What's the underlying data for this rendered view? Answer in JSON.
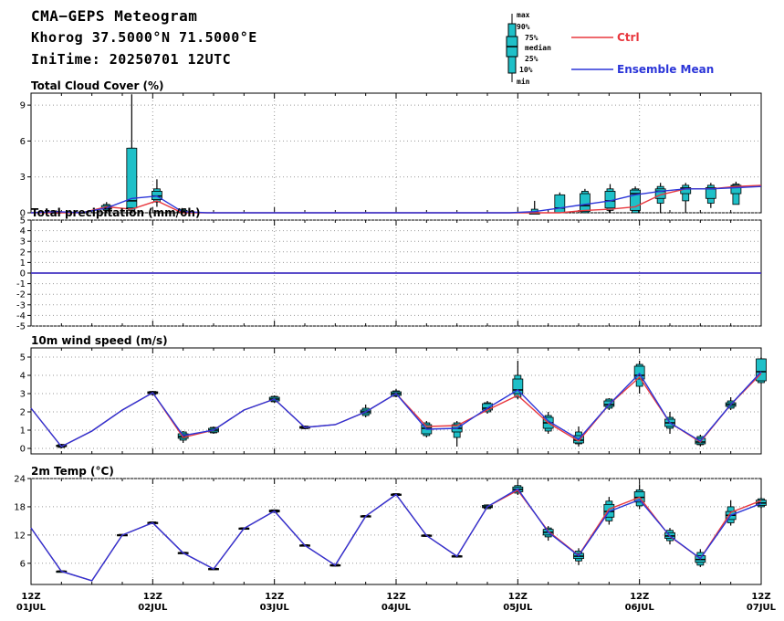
{
  "header": {
    "title": "CMA−GEPS Meteogram",
    "location": "Khorog 37.5000°N 71.5000°E",
    "init_time": "IniTime: 20250701 12UTC"
  },
  "legend": {
    "box_labels": [
      "max",
      "90%",
      "75%",
      "median",
      "25%",
      "10%",
      "min"
    ],
    "ctrl_label": "Ctrl",
    "mean_label": "Ensemble Mean",
    "ctrl_color": "#e8383f",
    "mean_color": "#2b35d8",
    "box_color": "#1fc0c8"
  },
  "x_axis": {
    "tick_hours": [
      "12Z",
      "12Z",
      "12Z",
      "12Z",
      "12Z",
      "12Z",
      "12Z"
    ],
    "tick_dates": [
      "01JUL",
      "02JUL",
      "03JUL",
      "04JUL",
      "05JUL",
      "06JUL",
      "07JUL"
    ]
  },
  "chart_data": [
    {
      "type": "line",
      "title": "Total Cloud Cover (%)",
      "ylim": [
        0,
        10
      ],
      "yticks": [
        0,
        3,
        6,
        9
      ],
      "x_step_hours": 6,
      "series": [
        {
          "name": "Ctrl",
          "values": [
            0,
            0,
            0,
            0.5,
            0.3,
            1,
            0,
            0,
            0,
            0,
            0,
            0,
            0,
            0,
            0,
            0,
            0,
            0,
            0,
            0,
            0,
            0,
            0.2,
            0.3,
            0.5,
            1.5,
            2,
            2,
            2.2,
            2.3
          ]
        },
        {
          "name": "Ensemble Mean",
          "values": [
            0,
            0.1,
            0,
            0.4,
            1.2,
            1.4,
            0.1,
            0,
            0,
            0,
            0,
            0,
            0,
            0,
            0,
            0,
            0,
            0,
            0,
            0,
            0.1,
            0.4,
            0.7,
            1,
            1.5,
            1.8,
            2,
            2,
            2.1,
            2.2
          ]
        }
      ],
      "boxes": [
        {
          "i": 1,
          "min": 0,
          "p10": 0,
          "p25": 0,
          "median": 0,
          "p75": 0.1,
          "p90": 0.1,
          "max": 0.2
        },
        {
          "i": 3,
          "min": 0,
          "p10": 0.2,
          "p25": 0.3,
          "median": 0.4,
          "p75": 0.6,
          "p90": 0.7,
          "max": 0.9
        },
        {
          "i": 4,
          "min": 0,
          "p10": 0.2,
          "p25": 0.4,
          "median": 1,
          "p75": 5.4,
          "p90": 5.4,
          "max": 9.9
        },
        {
          "i": 5,
          "min": 0.5,
          "p10": 0.9,
          "p25": 1.1,
          "median": 1.4,
          "p75": 1.8,
          "p90": 2,
          "max": 2.8
        },
        {
          "i": 6,
          "min": 0,
          "p10": 0,
          "p25": 0,
          "median": 0.1,
          "p75": 0.2,
          "p90": 0.3,
          "max": 0.4
        },
        {
          "i": 20,
          "min": 0,
          "p10": 0,
          "p25": 0,
          "median": 0,
          "p75": 0,
          "p90": 0.3,
          "max": 1
        },
        {
          "i": 21,
          "min": 0,
          "p10": 0,
          "p25": 0,
          "median": 0.4,
          "p75": 1.5,
          "p90": 1.5,
          "max": 1.7
        },
        {
          "i": 22,
          "min": 0,
          "p10": 0,
          "p25": 0.1,
          "median": 0.6,
          "p75": 1.6,
          "p90": 1.8,
          "max": 2
        },
        {
          "i": 23,
          "min": 0,
          "p10": 0.2,
          "p25": 0.4,
          "median": 1,
          "p75": 1.8,
          "p90": 2,
          "max": 2.4
        },
        {
          "i": 24,
          "min": 0,
          "p10": 0,
          "p25": 0.2,
          "median": 1.6,
          "p75": 1.9,
          "p90": 2,
          "max": 2.2
        },
        {
          "i": 25,
          "min": 0,
          "p10": 0.8,
          "p25": 1.2,
          "median": 1.8,
          "p75": 2,
          "p90": 2.2,
          "max": 2.5
        },
        {
          "i": 26,
          "min": 0,
          "p10": 1,
          "p25": 1.6,
          "median": 2,
          "p75": 2.1,
          "p90": 2.3,
          "max": 2.5
        },
        {
          "i": 27,
          "min": 0.4,
          "p10": 0.8,
          "p25": 1.2,
          "median": 2,
          "p75": 2.1,
          "p90": 2.3,
          "max": 2.5
        },
        {
          "i": 28,
          "min": 0.7,
          "p10": 0.7,
          "p25": 1.6,
          "median": 2.2,
          "p75": 2.3,
          "p90": 2.4,
          "max": 2.6
        }
      ]
    },
    {
      "type": "line",
      "title": "Total precipitation (mm/6h)",
      "ylim": [
        -5,
        5
      ],
      "yticks": [
        -5,
        -4,
        -3,
        -2,
        -1,
        0,
        1,
        2,
        3,
        4,
        5
      ],
      "x_step_hours": 6,
      "series": [
        {
          "name": "Ctrl",
          "values": [
            0,
            0,
            0,
            0,
            0,
            0,
            0,
            0,
            0,
            0,
            0,
            0,
            0,
            0,
            0,
            0,
            0,
            0,
            0,
            0,
            0,
            0,
            0,
            0,
            0,
            0,
            0,
            0,
            0,
            0
          ]
        },
        {
          "name": "Ensemble Mean",
          "values": [
            0,
            0,
            0,
            0,
            0,
            0,
            0,
            0,
            0,
            0,
            0,
            0,
            0,
            0,
            0,
            0,
            0,
            0,
            0,
            0,
            0,
            0,
            0,
            0,
            0,
            0,
            0,
            0,
            0,
            0
          ]
        }
      ],
      "boxes": []
    },
    {
      "type": "line",
      "title": "10m wind speed (m/s)",
      "ylim": [
        -0.3,
        5.5
      ],
      "yticks": [
        0,
        1,
        2,
        3,
        4,
        5
      ],
      "x_step_hours": 6,
      "series": [
        {
          "name": "Ctrl",
          "values": [
            2.2,
            0.1,
            0.95,
            2.1,
            3.05,
            0.6,
            1.0,
            2.1,
            2.7,
            1.15,
            1.3,
            2.0,
            3.0,
            1.2,
            1.25,
            2.1,
            2.9,
            1.4,
            0.4,
            2.4,
            3.9,
            1.4,
            0.35,
            2.4,
            4.1
          ]
        },
        {
          "name": "Ensemble Mean",
          "values": [
            2.2,
            0.1,
            0.95,
            2.1,
            3.05,
            0.7,
            1.0,
            2.1,
            2.7,
            1.15,
            1.3,
            2.0,
            3.0,
            1.05,
            1.1,
            2.2,
            3.2,
            1.5,
            0.5,
            2.4,
            4.1,
            1.4,
            0.4,
            2.4,
            4.2
          ]
        }
      ],
      "x_start_index": 0,
      "boxes": [
        {
          "i": 1,
          "min": 0,
          "p10": 0.05,
          "p25": 0.1,
          "median": 0.12,
          "p75": 0.18,
          "p90": 0.22,
          "max": 0.25
        },
        {
          "i": 4,
          "min": 2.9,
          "p10": 2.95,
          "p25": 3.0,
          "median": 3.05,
          "p75": 3.1,
          "p90": 3.12,
          "max": 3.15
        },
        {
          "i": 5,
          "min": 0.3,
          "p10": 0.45,
          "p25": 0.55,
          "median": 0.65,
          "p75": 0.8,
          "p90": 0.9,
          "max": 0.95
        },
        {
          "i": 6,
          "min": 0.8,
          "p10": 0.85,
          "p25": 0.9,
          "median": 1.0,
          "p75": 1.1,
          "p90": 1.15,
          "max": 1.2
        },
        {
          "i": 8,
          "min": 2.5,
          "p10": 2.55,
          "p25": 2.6,
          "median": 2.7,
          "p75": 2.8,
          "p90": 2.85,
          "max": 2.9
        },
        {
          "i": 9,
          "min": 1.05,
          "p10": 1.08,
          "p25": 1.1,
          "median": 1.15,
          "p75": 1.2,
          "p90": 1.22,
          "max": 1.25
        },
        {
          "i": 11,
          "min": 1.7,
          "p10": 1.8,
          "p25": 1.9,
          "median": 2.0,
          "p75": 2.1,
          "p90": 2.2,
          "max": 2.4
        },
        {
          "i": 12,
          "min": 2.8,
          "p10": 2.85,
          "p25": 2.9,
          "median": 3.0,
          "p75": 3.1,
          "p90": 3.15,
          "max": 3.25
        },
        {
          "i": 13,
          "min": 0.6,
          "p10": 0.7,
          "p25": 0.8,
          "median": 1.1,
          "p75": 1.3,
          "p90": 1.4,
          "max": 1.5
        },
        {
          "i": 14,
          "min": 0.1,
          "p10": 0.6,
          "p25": 0.9,
          "median": 1.1,
          "p75": 1.3,
          "p90": 1.4,
          "max": 1.5
        },
        {
          "i": 15,
          "min": 1.9,
          "p10": 2.0,
          "p25": 2.1,
          "median": 2.2,
          "p75": 2.45,
          "p90": 2.5,
          "max": 2.6
        },
        {
          "i": 16,
          "min": 2.7,
          "p10": 2.8,
          "p25": 3.0,
          "median": 3.2,
          "p75": 3.8,
          "p90": 4.0,
          "max": 4.8
        },
        {
          "i": 17,
          "min": 0.8,
          "p10": 0.95,
          "p25": 1.1,
          "median": 1.4,
          "p75": 1.7,
          "p90": 1.8,
          "max": 2.0
        },
        {
          "i": 18,
          "min": 0.1,
          "p10": 0.25,
          "p25": 0.3,
          "median": 0.45,
          "p75": 0.7,
          "p90": 0.9,
          "max": 1.2
        },
        {
          "i": 19,
          "min": 2.1,
          "p10": 2.2,
          "p25": 2.3,
          "median": 2.4,
          "p75": 2.6,
          "p90": 2.7,
          "max": 2.75
        },
        {
          "i": 20,
          "min": 3.0,
          "p10": 3.4,
          "p25": 3.8,
          "median": 4.0,
          "p75": 4.5,
          "p90": 4.6,
          "max": 4.8
        },
        {
          "i": 21,
          "min": 0.8,
          "p10": 1.1,
          "p25": 1.2,
          "median": 1.4,
          "p75": 1.6,
          "p90": 1.7,
          "max": 2.0
        },
        {
          "i": 22,
          "min": 0.1,
          "p10": 0.2,
          "p25": 0.25,
          "median": 0.35,
          "p75": 0.55,
          "p90": 0.65,
          "max": 0.75
        },
        {
          "i": 23,
          "min": 2.1,
          "p10": 2.2,
          "p25": 2.3,
          "median": 2.4,
          "p75": 2.5,
          "p90": 2.6,
          "max": 2.8
        },
        {
          "i": 24,
          "min": 3.6,
          "p10": 3.6,
          "p25": 3.7,
          "median": 4.2,
          "p75": 4.9,
          "p90": 4.9,
          "max": 5.0
        }
      ]
    },
    {
      "type": "line",
      "title": "2m Temp (°C)",
      "ylim": [
        1.5,
        24
      ],
      "yticks": [
        6,
        12,
        18,
        24
      ],
      "x_step_hours": 6,
      "series": [
        {
          "name": "Ctrl",
          "values": [
            13.5,
            4.3,
            2.3,
            12.0,
            14.6,
            8.2,
            4.8,
            13.4,
            17.1,
            9.8,
            5.6,
            16.0,
            20.6,
            11.9,
            7.5,
            18.0,
            21.5,
            12.8,
            7.7,
            17.5,
            20.0,
            11.7,
            7.0,
            16.8,
            19.3
          ]
        },
        {
          "name": "Ensemble Mean",
          "values": [
            13.5,
            4.3,
            2.3,
            12.0,
            14.6,
            8.2,
            4.8,
            13.4,
            17.1,
            9.8,
            5.6,
            16.0,
            20.6,
            11.9,
            7.5,
            18.0,
            21.8,
            12.6,
            7.6,
            17.0,
            19.5,
            11.8,
            7.0,
            16.2,
            18.7
          ]
        }
      ],
      "boxes": [
        {
          "i": 1,
          "min": 4.1,
          "p10": 4.2,
          "p25": 4.25,
          "median": 4.3,
          "p75": 4.35,
          "p90": 4.4,
          "max": 4.5
        },
        {
          "i": 3,
          "min": 11.8,
          "p10": 11.9,
          "p25": 11.95,
          "median": 12.0,
          "p75": 12.1,
          "p90": 12.15,
          "max": 12.2
        },
        {
          "i": 4,
          "min": 14.3,
          "p10": 14.4,
          "p25": 14.5,
          "median": 14.6,
          "p75": 14.7,
          "p90": 14.8,
          "max": 14.9
        },
        {
          "i": 5,
          "min": 8.0,
          "p10": 8.05,
          "p25": 8.1,
          "median": 8.2,
          "p75": 8.3,
          "p90": 8.35,
          "max": 8.4
        },
        {
          "i": 6,
          "min": 4.6,
          "p10": 4.65,
          "p25": 4.7,
          "median": 4.8,
          "p75": 4.9,
          "p90": 4.95,
          "max": 5.0
        },
        {
          "i": 7,
          "min": 13.2,
          "p10": 13.25,
          "p25": 13.3,
          "median": 13.4,
          "p75": 13.5,
          "p90": 13.55,
          "max": 13.6
        },
        {
          "i": 8,
          "min": 16.7,
          "p10": 16.8,
          "p25": 16.9,
          "median": 17.1,
          "p75": 17.3,
          "p90": 17.35,
          "max": 17.4
        },
        {
          "i": 9,
          "min": 9.6,
          "p10": 9.65,
          "p25": 9.7,
          "median": 9.8,
          "p75": 9.9,
          "p90": 9.95,
          "max": 10.0
        },
        {
          "i": 10,
          "min": 5.3,
          "p10": 5.4,
          "p25": 5.5,
          "median": 5.6,
          "p75": 5.7,
          "p90": 5.75,
          "max": 5.8
        },
        {
          "i": 11,
          "min": 15.8,
          "p10": 15.85,
          "p25": 15.9,
          "median": 16.0,
          "p75": 16.1,
          "p90": 16.15,
          "max": 16.2
        },
        {
          "i": 12,
          "min": 20.3,
          "p10": 20.4,
          "p25": 20.5,
          "median": 20.6,
          "p75": 20.7,
          "p90": 20.8,
          "max": 20.9
        },
        {
          "i": 13,
          "min": 11.6,
          "p10": 11.7,
          "p25": 11.8,
          "median": 11.9,
          "p75": 12.0,
          "p90": 12.05,
          "max": 12.1
        },
        {
          "i": 14,
          "min": 7.2,
          "p10": 7.3,
          "p25": 7.4,
          "median": 7.5,
          "p75": 7.6,
          "p90": 7.65,
          "max": 7.7
        },
        {
          "i": 15,
          "min": 17.5,
          "p10": 17.6,
          "p25": 17.8,
          "median": 18.0,
          "p75": 18.3,
          "p90": 18.4,
          "max": 18.5
        },
        {
          "i": 16,
          "min": 20.5,
          "p10": 20.9,
          "p25": 21.2,
          "median": 21.7,
          "p75": 22.2,
          "p90": 22.5,
          "max": 22.8
        },
        {
          "i": 17,
          "min": 10.8,
          "p10": 11.6,
          "p25": 12.0,
          "median": 12.6,
          "p75": 13.2,
          "p90": 13.5,
          "max": 13.9
        },
        {
          "i": 18,
          "min": 5.6,
          "p10": 6.5,
          "p25": 7.0,
          "median": 7.5,
          "p75": 8.1,
          "p90": 8.6,
          "max": 9.2
        },
        {
          "i": 19,
          "min": 14.2,
          "p10": 15.0,
          "p25": 15.8,
          "median": 17.0,
          "p75": 18.5,
          "p90": 19.2,
          "max": 20.1
        },
        {
          "i": 20,
          "min": 17.5,
          "p10": 18.2,
          "p25": 19.0,
          "median": 20.0,
          "p75": 21.2,
          "p90": 21.6,
          "max": 22.8
        },
        {
          "i": 21,
          "min": 10.0,
          "p10": 10.8,
          "p25": 11.3,
          "median": 11.8,
          "p75": 12.5,
          "p90": 13.0,
          "max": 13.5
        },
        {
          "i": 22,
          "min": 5.2,
          "p10": 5.6,
          "p25": 6.2,
          "median": 6.8,
          "p75": 7.6,
          "p90": 8.3,
          "max": 9.0
        },
        {
          "i": 23,
          "min": 14.0,
          "p10": 14.6,
          "p25": 15.3,
          "median": 16.2,
          "p75": 17.0,
          "p90": 18.0,
          "max": 19.4
        },
        {
          "i": 24,
          "min": 17.6,
          "p10": 18.0,
          "p25": 18.3,
          "median": 18.8,
          "p75": 19.4,
          "p90": 19.7,
          "max": 20.0
        }
      ]
    }
  ]
}
